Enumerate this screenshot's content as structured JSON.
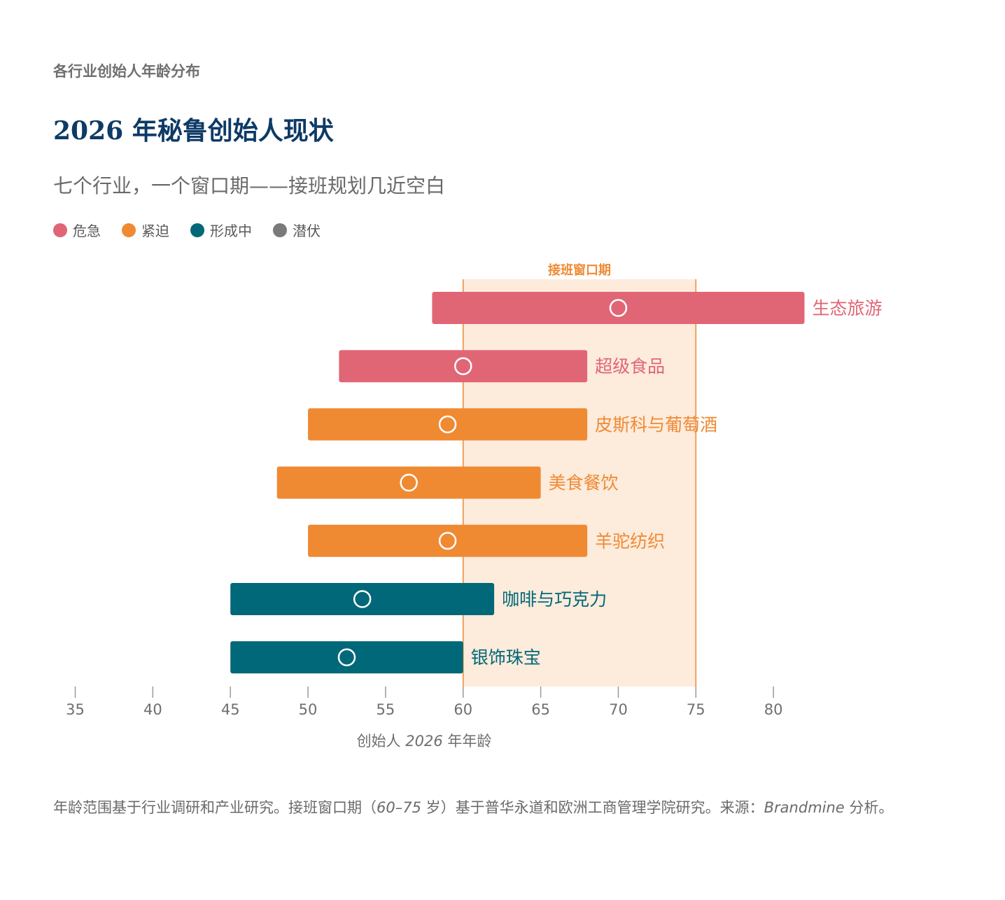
{
  "header": {
    "eyebrow": "各行业创始人年龄分布",
    "title": "2026 年秘鲁创始人现状",
    "subtitle": "七个行业，一个窗口期——接班规划几近空白"
  },
  "legend": [
    {
      "label": "危急",
      "color": "#e06676"
    },
    {
      "label": "紧迫",
      "color": "#ef8a33"
    },
    {
      "label": "形成中",
      "color": "#006878"
    },
    {
      "label": "潜伏",
      "color": "#7a7a7a"
    }
  ],
  "chart_data": {
    "type": "range-bar",
    "xlabel_prefix": "创始人",
    "xlabel_year": "2026",
    "xlabel_suffix": "年年龄",
    "xlim": [
      35,
      82
    ],
    "xticks": [
      35,
      40,
      45,
      50,
      55,
      60,
      65,
      70,
      75,
      80
    ],
    "window": {
      "label": "接班窗口期",
      "start": 60,
      "end": 75,
      "color": "#ef8a33",
      "fill": "#fdebdc"
    },
    "rows": [
      {
        "name": "生态旅游",
        "min": 58,
        "max": 82,
        "median": 70,
        "status": "危急",
        "color": "#e06676"
      },
      {
        "name": "超级食品",
        "min": 52,
        "max": 68,
        "median": 60,
        "status": "危急",
        "color": "#e06676"
      },
      {
        "name": "皮斯科与葡萄酒",
        "min": 50,
        "max": 68,
        "median": 59,
        "status": "紧迫",
        "color": "#ef8a33"
      },
      {
        "name": "美食餐饮",
        "min": 48,
        "max": 65,
        "median": 56.5,
        "status": "紧迫",
        "color": "#ef8a33"
      },
      {
        "name": "羊驼纺织",
        "min": 50,
        "max": 68,
        "median": 59,
        "status": "紧迫",
        "color": "#ef8a33"
      },
      {
        "name": "咖啡与巧克力",
        "min": 45,
        "max": 62,
        "median": 53.5,
        "status": "形成中",
        "color": "#006878"
      },
      {
        "name": "银饰珠宝",
        "min": 45,
        "max": 60,
        "median": 52.5,
        "status": "形成中",
        "color": "#006878"
      }
    ]
  },
  "footnote": {
    "part1": "年龄范围基于行业调研和产业研究。接班窗口期（",
    "range": "60–75",
    "part2": " 岁）基于普华永道和欧洲工商管理学院研究。来源：",
    "source": "Brandmine",
    "part3": " 分析。"
  }
}
